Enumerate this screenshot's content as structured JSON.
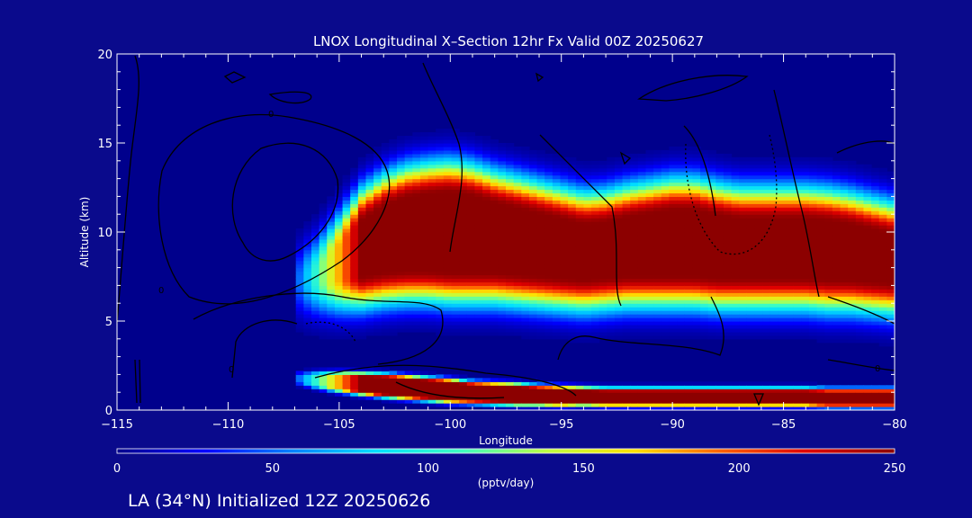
{
  "chart_data": {
    "type": "heatmap",
    "title": "LNOX Longitudinal X–Section 12hr  Fx Valid 00Z 20250627",
    "xlabel": "Longitude",
    "ylabel": "Altitude (km)",
    "xlim": [
      -115,
      -80
    ],
    "ylim": [
      0,
      20
    ],
    "x_ticks": [
      -115,
      -110,
      -105,
      -100,
      -95,
      -90,
      -85,
      -80
    ],
    "x_tick_labels": [
      "−115",
      "−110",
      "−105",
      "−100",
      "−95",
      "−90",
      "−85",
      "−80"
    ],
    "y_ticks": [
      0,
      5,
      10,
      15,
      20
    ],
    "y_tick_labels": [
      "0",
      "5",
      "10",
      "15",
      "20"
    ],
    "colorbar": {
      "min": 0,
      "max": 250,
      "ticks": [
        0,
        50,
        100,
        150,
        200,
        250
      ],
      "tick_labels": [
        "0",
        "50",
        "100",
        "150",
        "200",
        "250"
      ],
      "units": "(pptv/day)",
      "colormap": [
        "#00008c",
        "#0000ff",
        "#0080ff",
        "#00e0ff",
        "#40ffc0",
        "#c0ff40",
        "#ffe000",
        "#ff6000",
        "#e00000",
        "#8c0000"
      ]
    },
    "upper_band": {
      "longitudes": [
        -107,
        -106,
        -105,
        -104,
        -103,
        -102,
        -101,
        -100,
        -99,
        -98,
        -97,
        -96,
        -95,
        -94,
        -93,
        -92,
        -91,
        -90,
        -89,
        -88,
        -87,
        -86,
        -85,
        -84,
        -83,
        -82,
        -81,
        -80
      ],
      "core_center_km": [
        7.2,
        7.6,
        8.3,
        9.1,
        9.6,
        9.9,
        10.0,
        10.0,
        9.9,
        9.7,
        9.5,
        9.3,
        9.1,
        8.9,
        9.0,
        9.2,
        9.3,
        9.4,
        9.4,
        9.2,
        9.1,
        9.1,
        9.1,
        9.1,
        9.0,
        8.9,
        8.7,
        8.5
      ],
      "core_halfwidth_km": [
        0.0,
        0.3,
        0.9,
        1.5,
        1.8,
        2.0,
        2.1,
        2.2,
        2.1,
        1.9,
        1.8,
        1.7,
        1.6,
        1.5,
        1.5,
        1.6,
        1.7,
        1.8,
        1.8,
        1.7,
        1.6,
        1.6,
        1.6,
        1.6,
        1.6,
        1.5,
        1.4,
        1.3
      ],
      "peak_value": 250
    },
    "lower_band": {
      "longitudes": [
        -107,
        -106,
        -105,
        -104,
        -103,
        -102,
        -101,
        -100,
        -99,
        -98,
        -97,
        -96,
        -95,
        -94,
        -93,
        -92,
        -91,
        -90,
        -89,
        -88,
        -87,
        -86,
        -85,
        -84,
        -83,
        -82,
        -81,
        -80
      ],
      "core_center_km": [
        1.8,
        1.7,
        1.6,
        1.5,
        1.4,
        1.3,
        1.2,
        1.1,
        1.0,
        0.95,
        0.9,
        0.85,
        0.8,
        0.8,
        0.75,
        0.75,
        0.75,
        0.75,
        0.75,
        0.75,
        0.75,
        0.75,
        0.75,
        0.75,
        0.7,
        0.7,
        0.7,
        0.7
      ],
      "core_halfwidth_km": [
        0.1,
        0.25,
        0.35,
        0.4,
        0.45,
        0.45,
        0.45,
        0.45,
        0.4,
        0.4,
        0.4,
        0.35,
        0.35,
        0.3,
        0.3,
        0.3,
        0.3,
        0.3,
        0.3,
        0.3,
        0.3,
        0.3,
        0.3,
        0.3,
        0.3,
        0.3,
        0.3,
        0.3
      ],
      "peak_value": 250
    },
    "annotations": [
      "0",
      "0",
      "0",
      "0"
    ]
  },
  "footer": {
    "label": "LA (34°N) Initialized 12Z 20250626"
  }
}
